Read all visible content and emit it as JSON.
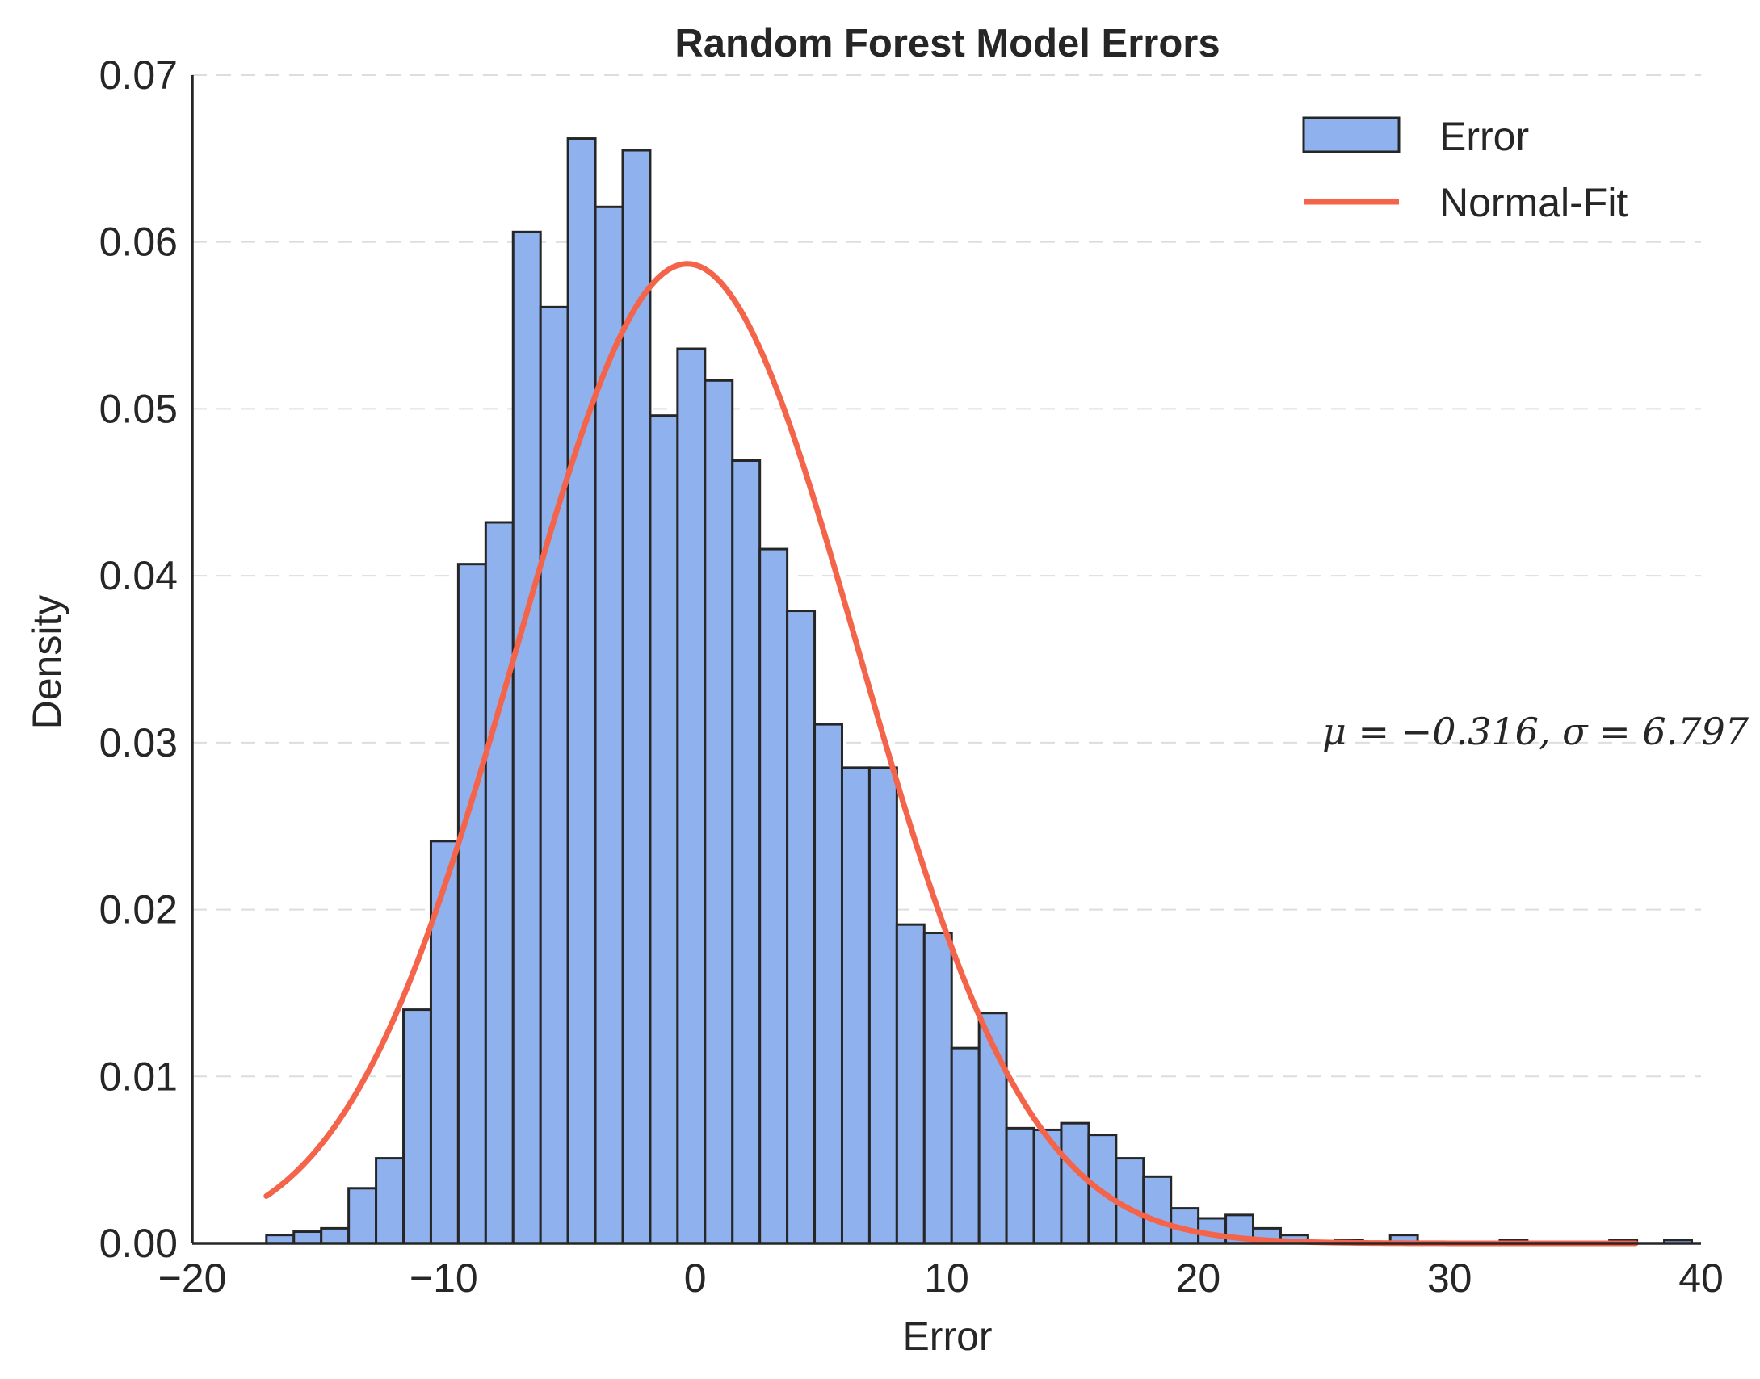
{
  "chart_data": {
    "type": "bar",
    "title": "Random Forest Model Errors",
    "xlabel": "Error",
    "ylabel": "Density",
    "xlim": [
      -20,
      40
    ],
    "ylim": [
      0,
      0.07
    ],
    "x_ticks": [
      -20,
      -10,
      0,
      10,
      20,
      30,
      40
    ],
    "x_tick_labels": [
      "−20",
      "−10",
      "0",
      "10",
      "20",
      "30",
      "40"
    ],
    "y_ticks": [
      0,
      0.01,
      0.02,
      0.03,
      0.04,
      0.05,
      0.06,
      0.07
    ],
    "y_tick_labels": [
      "0.00",
      "0.01",
      "0.02",
      "0.03",
      "0.04",
      "0.05",
      "0.06",
      "0.07"
    ],
    "grid": "horizontal dashed",
    "legend_position": "top-right",
    "legend": [
      "Error",
      "Normal-Fit"
    ],
    "colors": {
      "bars": "#8fb2ef",
      "bar_edge": "#262626",
      "fit_line": "#f4644a",
      "grid": "#dddddd",
      "axis": "#262626"
    },
    "series": [
      {
        "name": "Error",
        "type": "histogram",
        "bin_start": -17.05,
        "bin_width": 1.09,
        "values": [
          0.0005,
          0.0007,
          0.0009,
          0.0033,
          0.0051,
          0.014,
          0.0241,
          0.0407,
          0.0432,
          0.0606,
          0.0561,
          0.0662,
          0.0621,
          0.0655,
          0.0496,
          0.0536,
          0.0517,
          0.0469,
          0.0416,
          0.0379,
          0.0311,
          0.0285,
          0.0285,
          0.0191,
          0.0186,
          0.0117,
          0.0138,
          0.0069,
          0.0068,
          0.0072,
          0.0065,
          0.0051,
          0.004,
          0.0021,
          0.0015,
          0.0017,
          0.0009,
          0.0005,
          0.0,
          0.0002,
          0.0,
          0.0005,
          0.0,
          0.0,
          0.0,
          0.0002,
          0.0,
          0.0,
          0.0,
          0.0002,
          0.0,
          0.0002
        ]
      },
      {
        "name": "Normal-Fit",
        "type": "line",
        "mu": -0.316,
        "sigma": 6.797,
        "x_range": [
          -17.05,
          37.4
        ]
      }
    ],
    "annotation": "μ = −0.316, σ = 6.797"
  }
}
